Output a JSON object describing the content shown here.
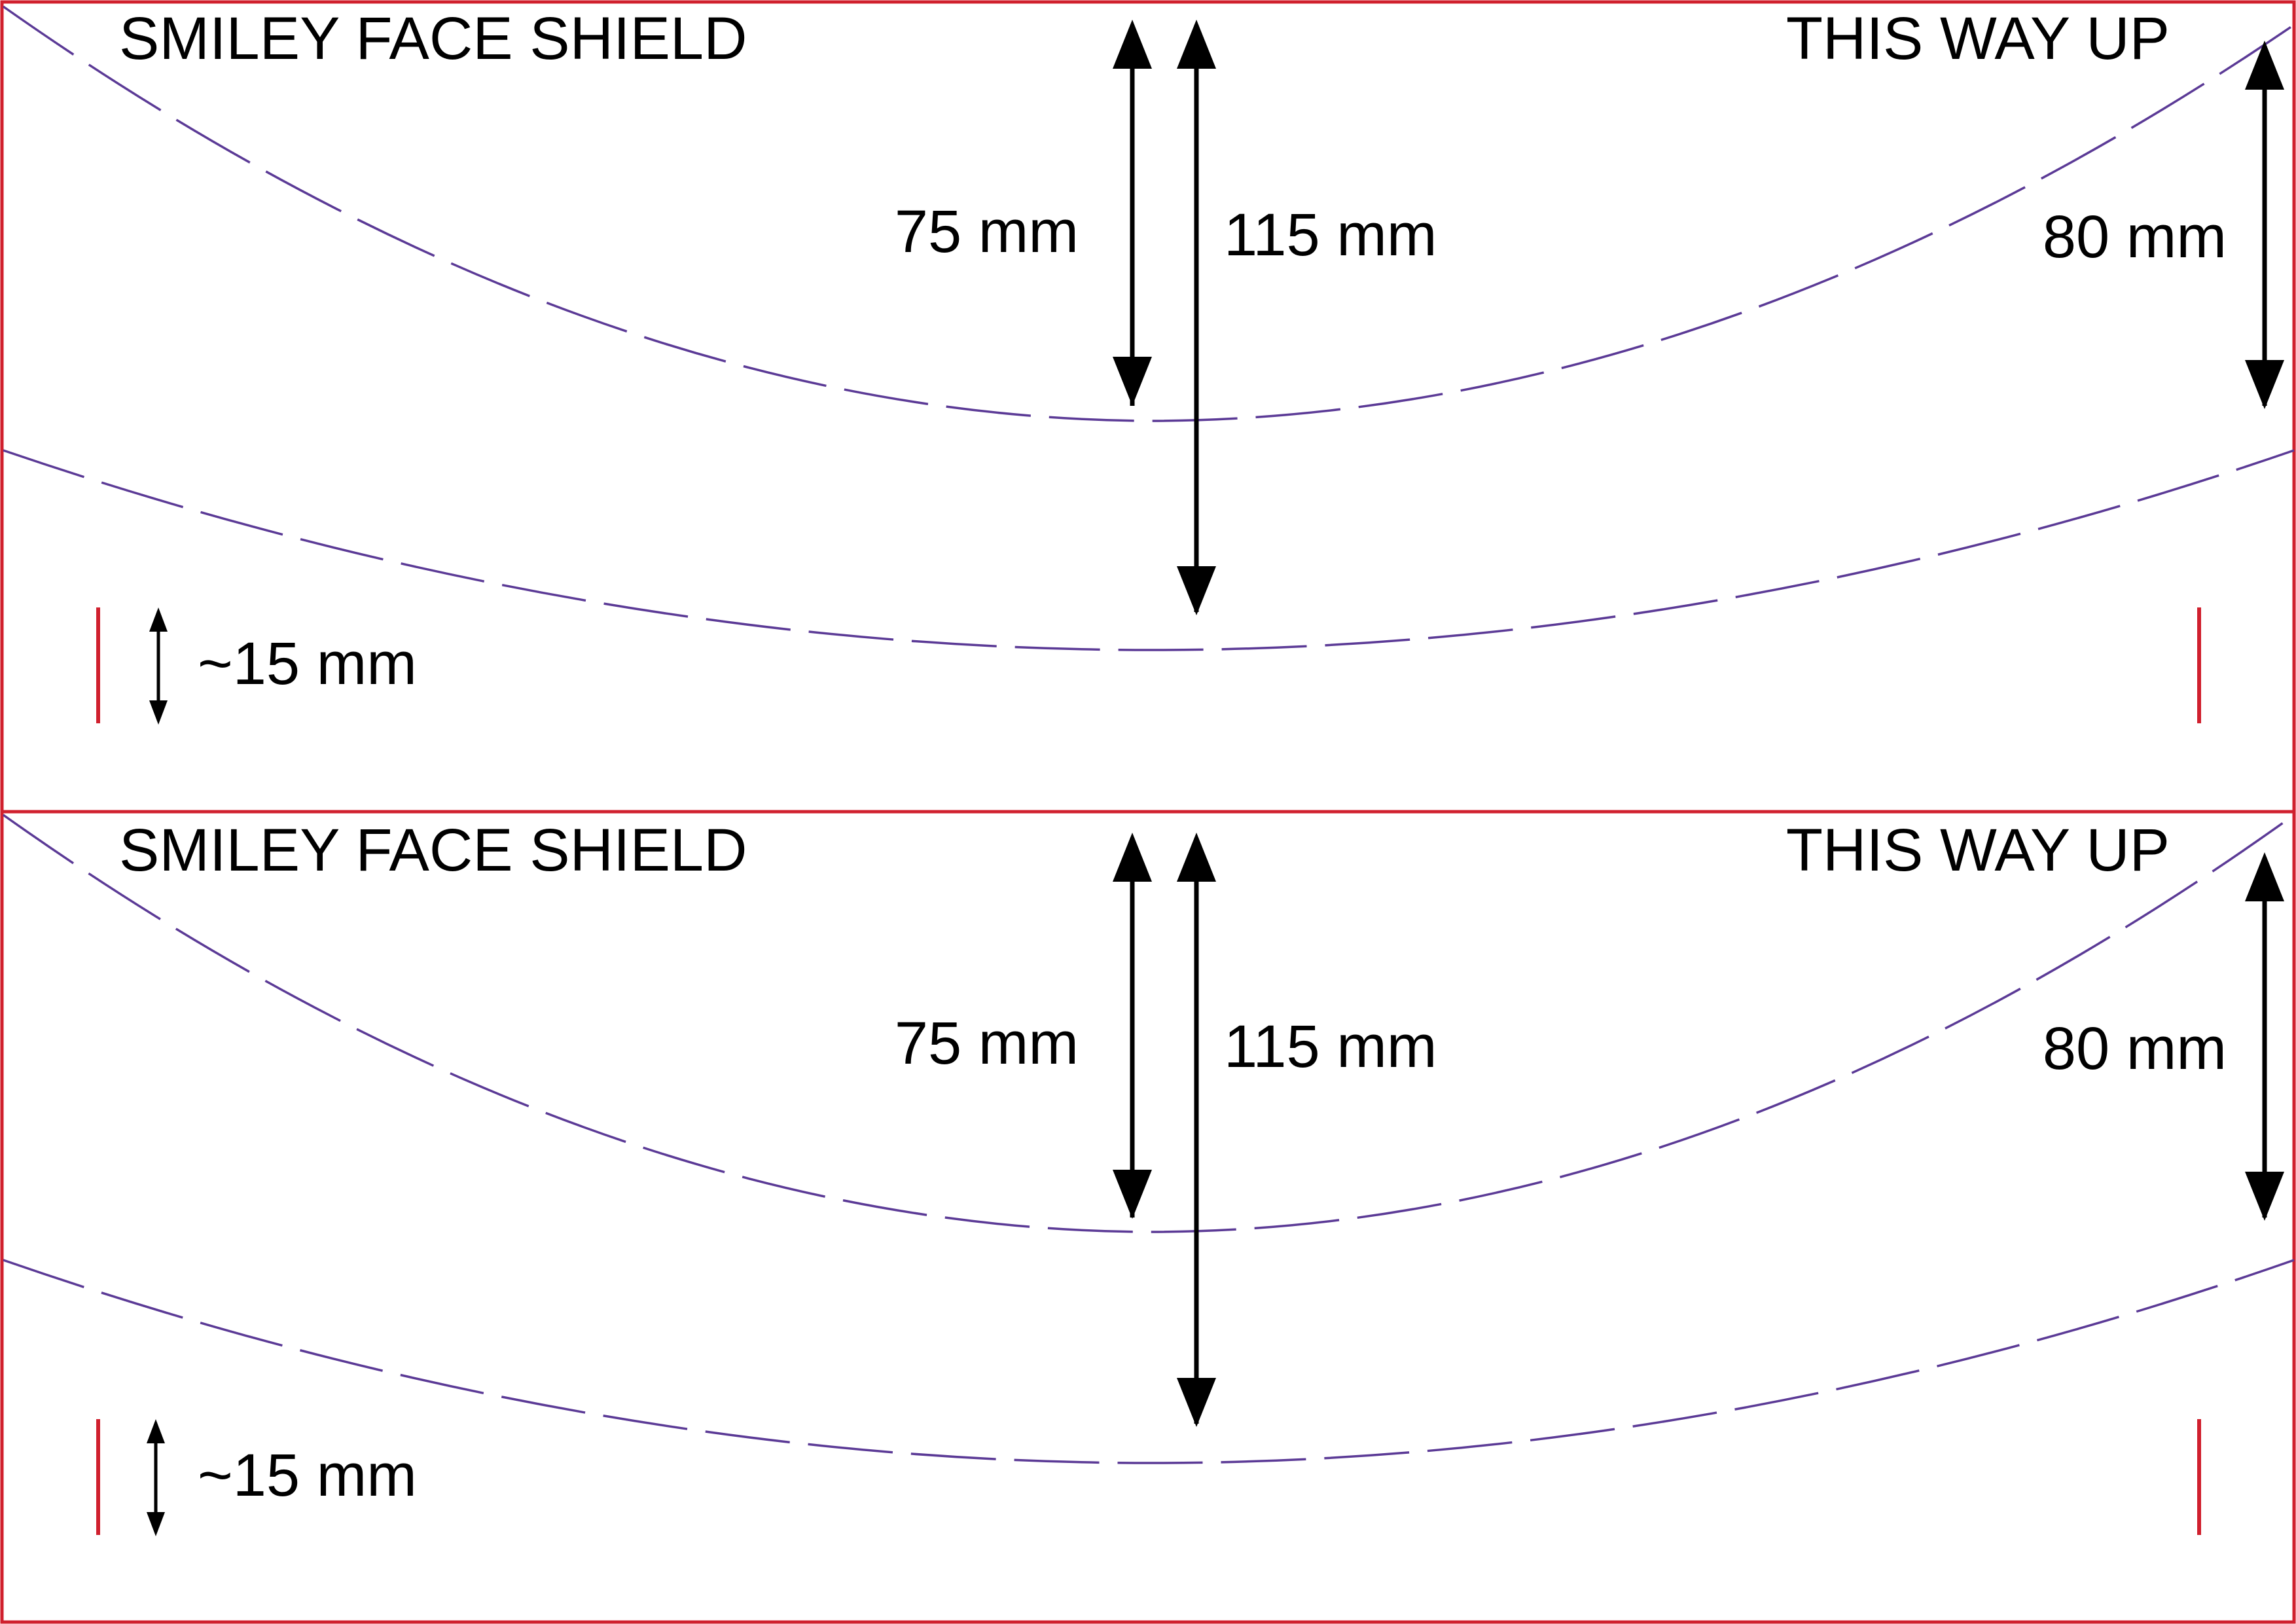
{
  "colors": {
    "border": "#d0202e",
    "cut_line": "#5b3a96",
    "arrow": "#000000",
    "text": "#000000"
  },
  "panels": [
    {
      "title_left": "SMILEY FACE SHIELD",
      "title_right": "THIS WAY UP",
      "dim_75": "75 mm",
      "dim_115": "115 mm",
      "dim_80": "80 mm",
      "dim_15": "~15 mm"
    },
    {
      "title_left": "SMILEY FACE SHIELD",
      "title_right": "THIS WAY UP",
      "dim_75": "75 mm",
      "dim_115": "115 mm",
      "dim_80": "80 mm",
      "dim_15": "~15 mm"
    }
  ]
}
